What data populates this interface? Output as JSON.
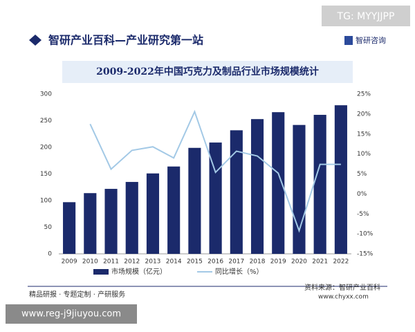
{
  "header": {
    "title": "智研产业百科—产业研究第一站",
    "badge": "TG: MYYJJPP",
    "logo": "智研咨询"
  },
  "footer": {
    "left": "精品研报 · 专题定制 · 产研服务",
    "source": "资料来源：智研产业百科",
    "site": "www.chyxx.com",
    "url": "www.reg-j9jiuyou.com"
  },
  "chart_data": {
    "type": "bar-line",
    "title": "2009-2022年中国巧克力及制品行业市场规模统计",
    "categories": [
      "2009",
      "2010",
      "2011",
      "2012",
      "2013",
      "2014",
      "2015",
      "2016",
      "2017",
      "2018",
      "2019",
      "2020",
      "2021",
      "2022"
    ],
    "series": [
      {
        "name": "市场规模（亿元）",
        "type": "bar",
        "color": "#1b2a6b",
        "values": [
          97,
          114,
          122,
          135,
          151,
          164,
          199,
          209,
          232,
          253,
          266,
          242,
          261,
          279
        ]
      },
      {
        "name": "同比增长（%）",
        "type": "line",
        "axis": "y2",
        "color": "#a3c9e6",
        "values": [
          null,
          17.5,
          6.2,
          10.9,
          11.8,
          9.0,
          20.6,
          5.4,
          10.7,
          9.5,
          5.2,
          -9.2,
          7.4,
          7.4
        ]
      }
    ],
    "ylim": [
      0,
      300
    ],
    "yticks": [
      0,
      50,
      100,
      150,
      200,
      250,
      300
    ],
    "y2lim": [
      -15,
      25
    ],
    "y2ticks": [
      {
        "value": -15,
        "label": "-15%"
      },
      {
        "value": -10,
        "label": "-10%"
      },
      {
        "value": -5,
        "label": "-5%"
      },
      {
        "value": 0,
        "label": "0%"
      },
      {
        "value": 5,
        "label": "5%"
      },
      {
        "value": 10,
        "label": "10%"
      },
      {
        "value": 15,
        "label": "15%"
      },
      {
        "value": 20,
        "label": "20%"
      },
      {
        "value": 25,
        "label": "25%"
      }
    ],
    "legend": "bottom"
  }
}
